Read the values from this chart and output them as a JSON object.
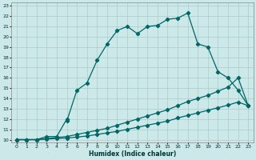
{
  "xlabel": "Humidex (Indice chaleur)",
  "bg_color": "#cce8e8",
  "grid_color": "#aacccc",
  "line_color": "#006666",
  "xlim": [
    -0.5,
    23.5
  ],
  "ylim": [
    9.7,
    23.3
  ],
  "xticks": [
    0,
    1,
    2,
    3,
    4,
    5,
    6,
    7,
    8,
    9,
    10,
    11,
    12,
    13,
    14,
    15,
    16,
    17,
    18,
    19,
    20,
    21,
    22,
    23
  ],
  "yticks": [
    10,
    11,
    12,
    13,
    14,
    15,
    16,
    17,
    18,
    19,
    20,
    21,
    22,
    23
  ],
  "line1_x": [
    0,
    1,
    2,
    3,
    4,
    5,
    5,
    6,
    7,
    8,
    9,
    10,
    11,
    12,
    13,
    14,
    15,
    16,
    17,
    18,
    19,
    20,
    21,
    22,
    23
  ],
  "line1_y": [
    10,
    10,
    10,
    10.3,
    10.3,
    12.0,
    11.8,
    14.8,
    15.5,
    17.7,
    19.3,
    20.6,
    21.0,
    20.3,
    21.0,
    21.1,
    21.7,
    21.8,
    22.3,
    19.3,
    19.0,
    16.6,
    16.0,
    14.8,
    13.3
  ],
  "line2_x": [
    0,
    1,
    2,
    3,
    4,
    5,
    6,
    7,
    8,
    9,
    10,
    11,
    12,
    13,
    14,
    15,
    16,
    17,
    18,
    19,
    20,
    21,
    22,
    23
  ],
  "line2_y": [
    10,
    10,
    10,
    10.1,
    10.2,
    10.3,
    10.5,
    10.7,
    10.9,
    11.1,
    11.4,
    11.7,
    12.0,
    12.3,
    12.6,
    12.9,
    13.3,
    13.7,
    14.0,
    14.3,
    14.7,
    15.1,
    16.0,
    13.3
  ],
  "line3_x": [
    0,
    1,
    2,
    3,
    4,
    5,
    6,
    7,
    8,
    9,
    10,
    11,
    12,
    13,
    14,
    15,
    16,
    17,
    18,
    19,
    20,
    21,
    22,
    23
  ],
  "line3_y": [
    10,
    10,
    10,
    10.05,
    10.1,
    10.15,
    10.25,
    10.35,
    10.5,
    10.65,
    10.8,
    11.0,
    11.2,
    11.4,
    11.6,
    11.8,
    12.1,
    12.35,
    12.6,
    12.85,
    13.1,
    13.35,
    13.65,
    13.3
  ]
}
